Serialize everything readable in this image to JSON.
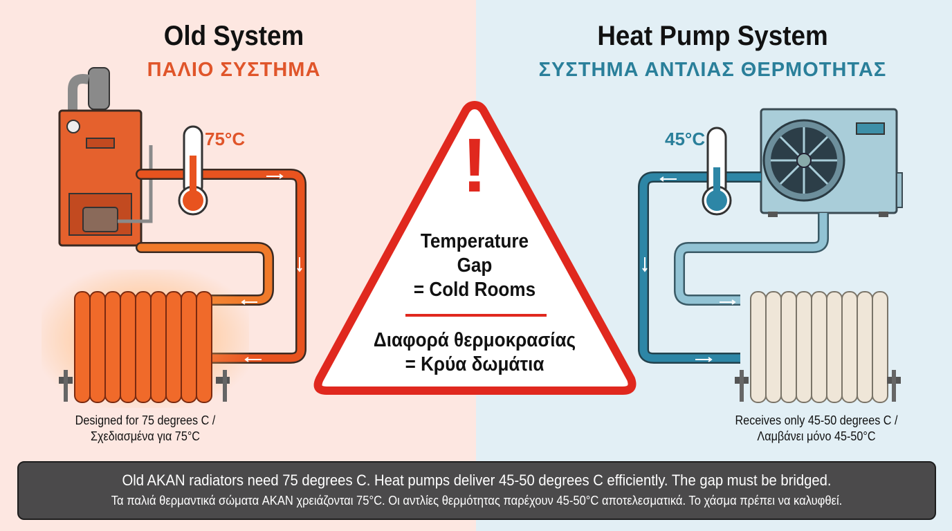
{
  "left": {
    "title": "Old System",
    "subtitle": "ΠΑΛΙΟ ΣΥΣΤΗΜΑ",
    "temperature": "75°C",
    "caption_en": "Designed for 75 degrees C /",
    "caption_gr": "Σχεδιασμένα για 75°C"
  },
  "right": {
    "title": "Heat Pump System",
    "subtitle": "ΣΥΣΤΗΜΑ ΑΝΤΛΙΑΣ ΘΕΡΜΟΤΗΤΑΣ",
    "temperature": "45°C",
    "caption_en": "Receives only 45-50 degrees C /",
    "caption_gr": "Λαμβάνει μόνο 45-50°C"
  },
  "warning": {
    "symbol": "!",
    "line1": "Temperature",
    "line2": "Gap",
    "line3": "= Cold Rooms",
    "line4": "Διαφορά θερμοκρασίας",
    "line5": "= Κρύα δωμάτια"
  },
  "footer": {
    "en": "Old AKAN radiators need 75 degrees C. Heat pumps deliver 45-50 degrees C efficiently. The gap must be bridged.",
    "gr": "Τα παλιά θερμαντικά σώματα AKAN χρειάζονται 75°C. Οι αντλίες θερμότητας παρέχουν 45-50°C αποτελεσματικά. Το χάσμα πρέπει να καλυφθεί."
  },
  "colors": {
    "hot": "#e8531f",
    "cool": "#2d86a6",
    "warning": "#e0281e",
    "footer_bg": "#4b4a4b"
  }
}
